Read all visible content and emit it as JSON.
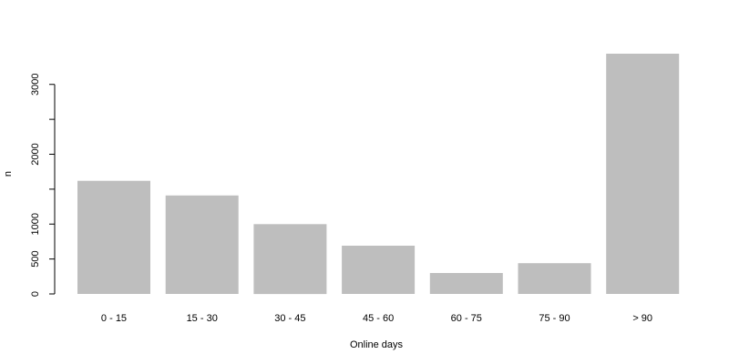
{
  "chart_data": {
    "type": "bar",
    "title": "",
    "xlabel": "Online days",
    "ylabel": "n",
    "categories": [
      "0 - 15",
      "15 - 30",
      "30 - 45",
      "45 - 60",
      "60 - 75",
      "75 - 90",
      "> 90"
    ],
    "values": [
      1620,
      1410,
      1000,
      690,
      300,
      440,
      3440
    ],
    "y_ticks": [
      0,
      500,
      1000,
      1500,
      2000,
      2500,
      3000
    ],
    "y_tick_labels": [
      "0",
      "500",
      "1000",
      "",
      "2000",
      "",
      "3000"
    ],
    "ylim": [
      0,
      3500
    ],
    "grid": false,
    "bar_color": "#bebebe"
  }
}
